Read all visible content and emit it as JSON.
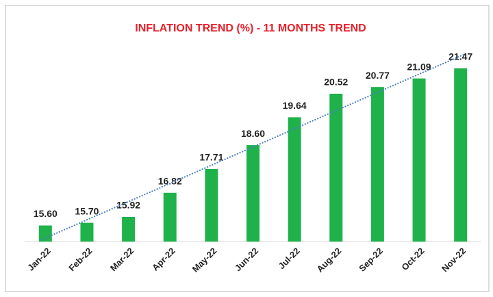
{
  "chart_data": {
    "type": "bar",
    "title": "INFLATION TREND (%) - 11 MONTHS TREND",
    "categories": [
      "Jan-22",
      "Feb-22",
      "Mar-22",
      "Apr-22",
      "May-22",
      "Jun-22",
      "Jul-22",
      "Aug-22",
      "Sep-22",
      "Oct-22",
      "Nov-22"
    ],
    "values": [
      15.6,
      15.7,
      15.92,
      16.82,
      17.71,
      18.6,
      19.64,
      20.52,
      20.77,
      21.09,
      21.47
    ],
    "value_labels": [
      "15.60",
      "15.70",
      "15.92",
      "16.82",
      "17.71",
      "18.60",
      "19.64",
      "20.52",
      "20.77",
      "21.09",
      "21.47"
    ],
    "color": "#1fb24a",
    "ylim": [
      15,
      22
    ],
    "trendline": "linear",
    "trendline_color": "#4a7fc1",
    "grid": false
  }
}
